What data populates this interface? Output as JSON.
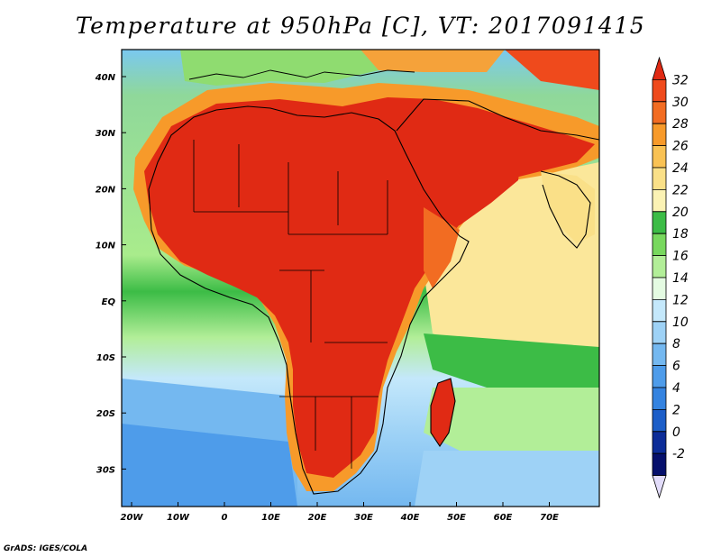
{
  "title": "Temperature at 950hPa [C], VT: 2017091415",
  "credit": "GrADS: IGES/COLA",
  "lat_labels": [
    "40N",
    "30N",
    "20N",
    "10N",
    "EQ",
    "10S",
    "20S",
    "30S"
  ],
  "lon_labels": [
    "20W",
    "10W",
    "0",
    "10E",
    "20E",
    "30E",
    "40E",
    "50E",
    "60E",
    "70E"
  ],
  "colorbar": {
    "labels": [
      "32",
      "30",
      "28",
      "26",
      "24",
      "22",
      "20",
      "18",
      "16",
      "14",
      "12",
      "10",
      "8",
      "6",
      "4",
      "2",
      "0",
      "-2"
    ],
    "colors": [
      "#e02a14",
      "#ef4a1c",
      "#f26c22",
      "#f79a2a",
      "#f9c254",
      "#fae088",
      "#fbf2b4",
      "#3cbc46",
      "#78d85e",
      "#b2ee98",
      "#e4fbe2",
      "#c4e8fb",
      "#9ed2f6",
      "#74b8f0",
      "#4e9cea",
      "#3483e0",
      "#1c5ec8",
      "#0c2c98",
      "#06106c",
      "#e2dcfa"
    ]
  },
  "colors": {
    "ocean_cool": "#74b8f0",
    "ocean_warm": "#fae088",
    "land_hot": "#e02a14"
  }
}
